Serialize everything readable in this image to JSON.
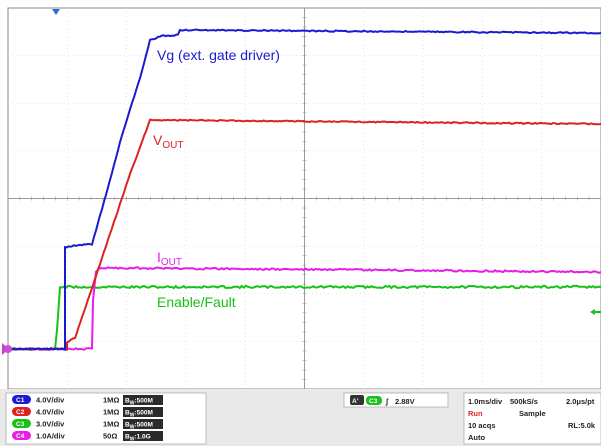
{
  "traces": {
    "vg": {
      "label": "Vg (ext. gate driver)",
      "color": "#1a1ad0"
    },
    "vout": {
      "label_main": "V",
      "label_sub": "OUT",
      "color": "#dd2222"
    },
    "iout": {
      "label_main": "I",
      "label_sub": "OUT",
      "color": "#e61ee6"
    },
    "enable": {
      "label": "Enable/Fault",
      "color": "#19c019"
    }
  },
  "channels": [
    {
      "badge": "C1",
      "color": "#1a1ad0",
      "scale": "4.0V/div",
      "coupling": "1MΩ",
      "bw": "B",
      "bw_sub": "W",
      "bw_value": ":500M"
    },
    {
      "badge": "C2",
      "color": "#dd2222",
      "scale": "4.0V/div",
      "coupling": "1MΩ",
      "bw": "B",
      "bw_sub": "W",
      "bw_value": ":500M"
    },
    {
      "badge": "C3",
      "color": "#19c019",
      "scale": "3.0V/div",
      "coupling": "1MΩ",
      "bw": "B",
      "bw_sub": "W",
      "bw_value": ":500M"
    },
    {
      "badge": "C4",
      "color": "#e61ee6",
      "scale": "1.0A/div",
      "coupling": "50Ω",
      "bw": "B",
      "bw_sub": "W",
      "bw_value": ":1.0G"
    }
  ],
  "trigger": {
    "source_a": "A'",
    "source_ch": "C3",
    "slope": "∫",
    "level": "2.88V"
  },
  "acquisition": {
    "timebase": "1.0ms/div",
    "sample_rate": "500kS/s",
    "resolution": "2.0μs/pt",
    "state": "Run",
    "mode": "Sample",
    "acqs": "10 acqs",
    "record_length": "RL:5.0k",
    "trigger_mode": "Auto"
  }
}
